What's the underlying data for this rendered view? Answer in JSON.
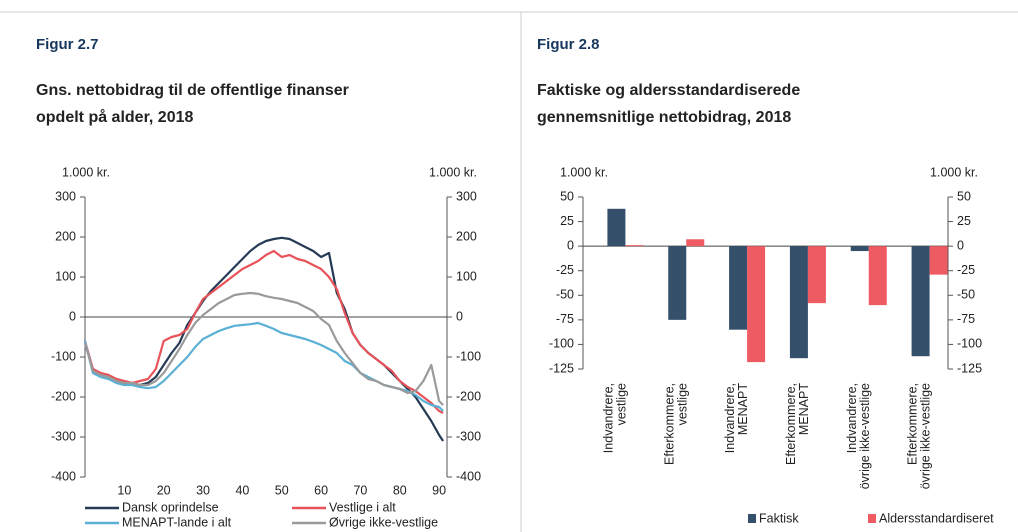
{
  "chart_data": [
    {
      "type": "line",
      "figure": "Figur 2.7",
      "title": [
        "Gns. nettobidrag til de offentlige finanser",
        "opdelt på alder, 2018"
      ],
      "ylabel": "1.000 kr.",
      "y2label": "1.000 kr.",
      "x": [
        0,
        2,
        4,
        6,
        8,
        10,
        12,
        14,
        16,
        18,
        20,
        22,
        24,
        26,
        28,
        30,
        32,
        34,
        36,
        38,
        40,
        42,
        44,
        46,
        48,
        50,
        52,
        54,
        56,
        58,
        60,
        62,
        64,
        66,
        68,
        70,
        72,
        74,
        76,
        78,
        80,
        82,
        84,
        86,
        88,
        90,
        91
      ],
      "xlim": [
        0,
        92
      ],
      "xticks": [
        10,
        20,
        30,
        40,
        50,
        60,
        70,
        80,
        90
      ],
      "ylim": [
        -400,
        300
      ],
      "yticks": [
        300,
        200,
        100,
        0,
        -100,
        -200,
        -300,
        -400
      ],
      "y2lim": [
        -400,
        300
      ],
      "y2ticks": [
        300,
        200,
        100,
        0,
        -100,
        -200,
        -300,
        -400
      ],
      "series": [
        {
          "name": "Dansk oprindelse",
          "color": "#243a55",
          "values": [
            -65,
            -130,
            -145,
            -150,
            -160,
            -165,
            -168,
            -170,
            -165,
            -150,
            -120,
            -90,
            -65,
            -20,
            10,
            40,
            65,
            85,
            105,
            125,
            145,
            165,
            180,
            190,
            195,
            198,
            195,
            185,
            175,
            165,
            150,
            160,
            60,
            20,
            -40,
            -70,
            -90,
            -105,
            -120,
            -140,
            -160,
            -180,
            -200,
            -230,
            -260,
            -295,
            -310
          ]
        },
        {
          "name": "Vestlige i alt",
          "color": "#e8535a",
          "values": [
            -60,
            -130,
            -140,
            -145,
            -155,
            -160,
            -165,
            -160,
            -155,
            -130,
            -60,
            -50,
            -45,
            -30,
            10,
            45,
            60,
            75,
            90,
            105,
            120,
            130,
            140,
            155,
            165,
            150,
            155,
            145,
            140,
            130,
            120,
            100,
            70,
            10,
            -40,
            -70,
            -90,
            -105,
            -120,
            -135,
            -160,
            -175,
            -185,
            -200,
            -215,
            -235,
            -240
          ]
        },
        {
          "name": "MENAPT-lande i alt",
          "color": "#5ab0d5",
          "values": [
            -60,
            -140,
            -150,
            -155,
            -165,
            -170,
            -170,
            -175,
            -178,
            -175,
            -160,
            -140,
            -120,
            -100,
            -75,
            -55,
            -45,
            -35,
            -28,
            -22,
            -20,
            -18,
            -15,
            -22,
            -30,
            -40,
            -45,
            -50,
            -55,
            -62,
            -70,
            -80,
            -90,
            -110,
            -120,
            -140,
            -150,
            -160,
            -170,
            -175,
            -180,
            -185,
            -195,
            -210,
            -220,
            -225,
            -235
          ]
        },
        {
          "name": "Øvrige ikke-vestlige",
          "color": "#9a9a9a",
          "values": [
            -65,
            -135,
            -145,
            -150,
            -160,
            -165,
            -165,
            -170,
            -170,
            -160,
            -140,
            -110,
            -80,
            -45,
            -15,
            5,
            20,
            35,
            45,
            55,
            58,
            60,
            58,
            52,
            48,
            45,
            40,
            35,
            25,
            15,
            -5,
            -20,
            -60,
            -90,
            -115,
            -140,
            -155,
            -160,
            -170,
            -175,
            -180,
            -190,
            -185,
            -160,
            -120,
            -210,
            -220
          ]
        }
      ]
    },
    {
      "type": "bar",
      "figure": "Figur 2.8",
      "title": [
        "Faktiske og aldersstandardiserede",
        "gennemsnitlige nettobidrag, 2018"
      ],
      "ylabel": "1.000 kr.",
      "y2label": "1.000 kr.",
      "categories": [
        "Indvandrere,\nvestlige",
        "Efterkommere,\nvestlige",
        "Indvandrere,\nMENAPT",
        "Efterkommere,\nMENAPT",
        "Indvandrere,\növrige ikke-vestlige",
        "Efterkommere,\növrige ikke-vestlige"
      ],
      "ylim": [
        -125,
        50
      ],
      "yticks": [
        50,
        25,
        0,
        -25,
        -50,
        -75,
        -100,
        -125
      ],
      "y2lim": [
        -125,
        50
      ],
      "y2ticks": [
        50,
        25,
        0,
        -25,
        -50,
        -75,
        -100,
        -125
      ],
      "series": [
        {
          "name": "Faktisk",
          "color": "#35506a",
          "values": [
            38,
            -75,
            -85,
            -114,
            -5,
            -112
          ]
        },
        {
          "name": "Aldersstandardiseret",
          "color": "#ef5b63",
          "values": [
            1,
            7,
            -118,
            -58,
            -60,
            -29
          ]
        }
      ]
    }
  ]
}
